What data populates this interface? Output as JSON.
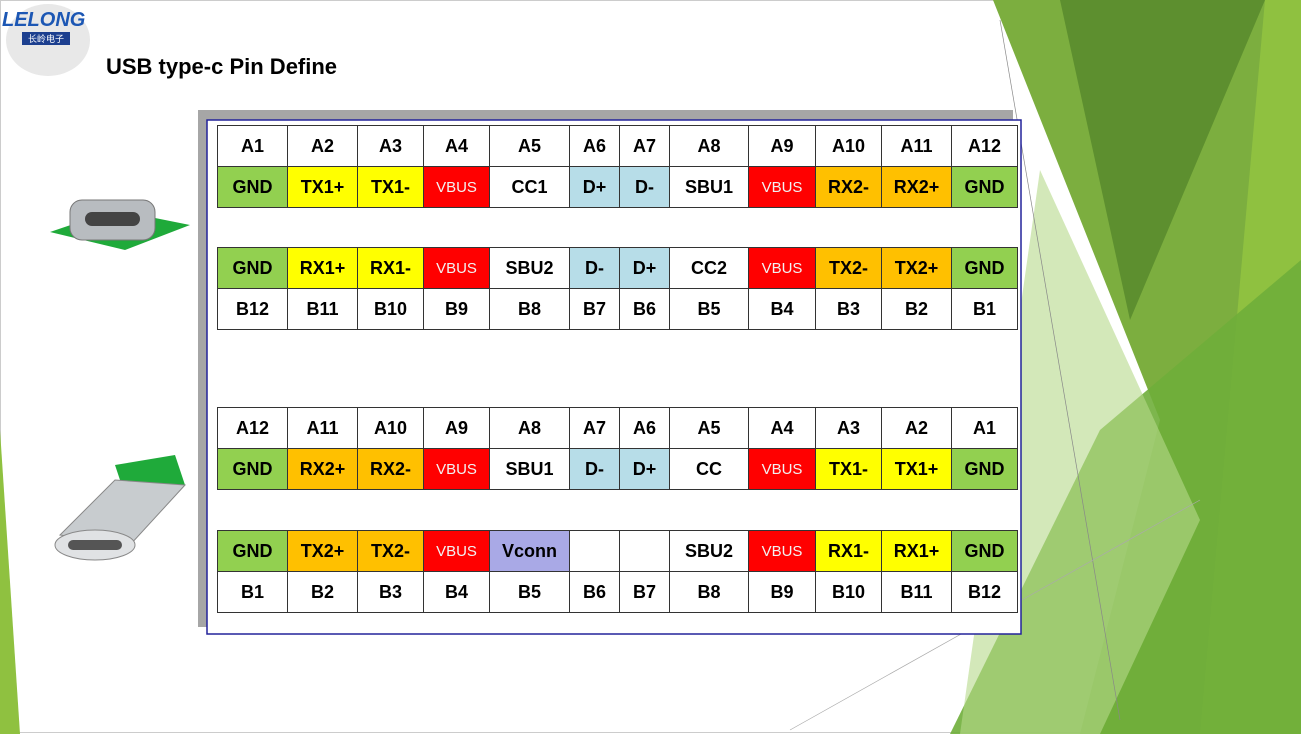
{
  "logo": {
    "brand": "LELONG",
    "subtitle": "长岭电子"
  },
  "title": "USB type-c Pin Define",
  "tables": [
    {
      "rows": [
        {
          "cells": [
            "A1",
            "A2",
            "A3",
            "A4",
            "A5",
            "A6",
            "A7",
            "A8",
            "A9",
            "A10",
            "A11",
            "A12"
          ],
          "colors": [
            "#ffffff",
            "#ffffff",
            "#ffffff",
            "#ffffff",
            "#ffffff",
            "#ffffff",
            "#ffffff",
            "#ffffff",
            "#ffffff",
            "#ffffff",
            "#ffffff",
            "#ffffff"
          ]
        },
        {
          "cells": [
            "GND",
            "TX1+",
            "TX1-",
            "VBUS",
            "CC1",
            "D+",
            "D-",
            "SBU1",
            "VBUS",
            "RX2-",
            "RX2+",
            "GND"
          ],
          "colors": [
            "#92d050",
            "#ffff00",
            "#ffff00",
            "#ff0000",
            "#ffffff",
            "#b7dde8",
            "#b7dde8",
            "#ffffff",
            "#ff0000",
            "#ffc000",
            "#ffc000",
            "#92d050"
          ]
        }
      ]
    },
    {
      "rows": [
        {
          "cells": [
            "GND",
            "RX1+",
            "RX1-",
            "VBUS",
            "SBU2",
            "D-",
            "D+",
            "CC2",
            "VBUS",
            "TX2-",
            "TX2+",
            "GND"
          ],
          "colors": [
            "#92d050",
            "#ffff00",
            "#ffff00",
            "#ff0000",
            "#ffffff",
            "#b7dde8",
            "#b7dde8",
            "#ffffff",
            "#ff0000",
            "#ffc000",
            "#ffc000",
            "#92d050"
          ]
        },
        {
          "cells": [
            "B12",
            "B11",
            "B10",
            "B9",
            "B8",
            "B7",
            "B6",
            "B5",
            "B4",
            "B3",
            "B2",
            "B1"
          ],
          "colors": [
            "#ffffff",
            "#ffffff",
            "#ffffff",
            "#ffffff",
            "#ffffff",
            "#ffffff",
            "#ffffff",
            "#ffffff",
            "#ffffff",
            "#ffffff",
            "#ffffff",
            "#ffffff"
          ]
        }
      ]
    },
    {
      "rows": [
        {
          "cells": [
            "A12",
            "A11",
            "A10",
            "A9",
            "A8",
            "A7",
            "A6",
            "A5",
            "A4",
            "A3",
            "A2",
            "A1"
          ],
          "colors": [
            "#ffffff",
            "#ffffff",
            "#ffffff",
            "#ffffff",
            "#ffffff",
            "#ffffff",
            "#ffffff",
            "#ffffff",
            "#ffffff",
            "#ffffff",
            "#ffffff",
            "#ffffff"
          ]
        },
        {
          "cells": [
            "GND",
            "RX2+",
            "RX2-",
            "VBUS",
            "SBU1",
            "D-",
            "D+",
            "CC",
            "VBUS",
            "TX1-",
            "TX1+",
            "GND"
          ],
          "colors": [
            "#92d050",
            "#ffc000",
            "#ffc000",
            "#ff0000",
            "#ffffff",
            "#b7dde8",
            "#b7dde8",
            "#ffffff",
            "#ff0000",
            "#ffff00",
            "#ffff00",
            "#92d050"
          ]
        }
      ]
    },
    {
      "rows": [
        {
          "cells": [
            "GND",
            "TX2+",
            "TX2-",
            "VBUS",
            "Vconn",
            null,
            null,
            "SBU2",
            "VBUS",
            "RX1-",
            "RX1+",
            "GND"
          ],
          "colors": [
            "#92d050",
            "#ffc000",
            "#ffc000",
            "#ff0000",
            "#a9a9e6",
            "#ffffff",
            "#ffffff",
            "#ffffff",
            "#ff0000",
            "#ffff00",
            "#ffff00",
            "#92d050"
          ]
        },
        {
          "cells": [
            "B1",
            "B2",
            "B3",
            "B4",
            "B5",
            "B6",
            "B7",
            "B8",
            "B9",
            "B10",
            "B11",
            "B12"
          ],
          "colors": [
            "#ffffff",
            "#ffffff",
            "#ffffff",
            "#ffffff",
            "#ffffff",
            "#ffffff",
            "#ffffff",
            "#ffffff",
            "#ffffff",
            "#ffffff",
            "#ffffff",
            "#ffffff"
          ]
        }
      ]
    }
  ]
}
